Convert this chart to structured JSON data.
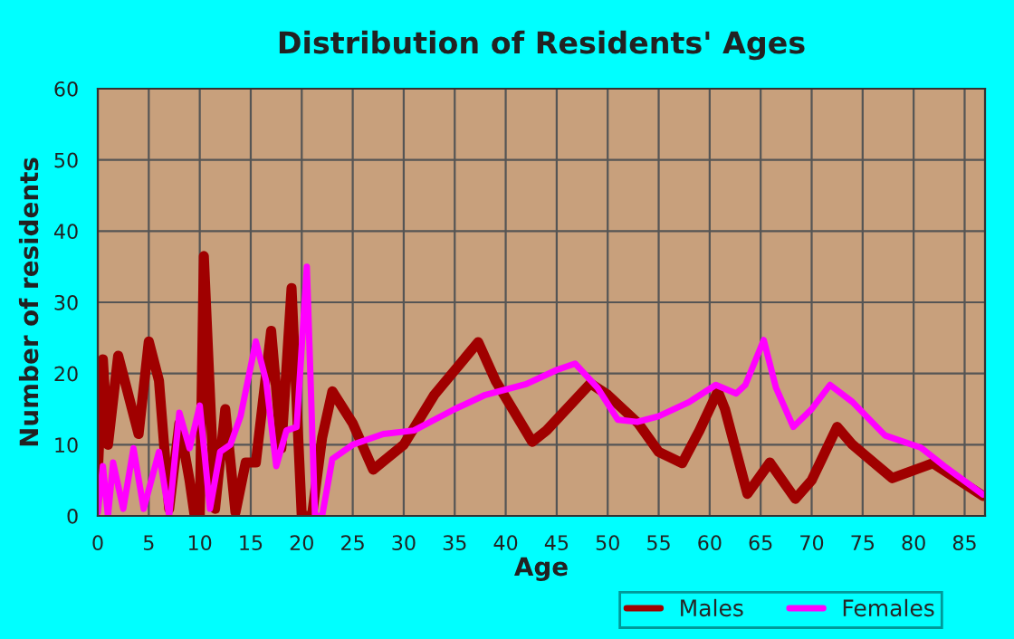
{
  "chart_data": {
    "type": "line",
    "title": "Distribution of Residents' Ages",
    "xlabel": "Age",
    "ylabel": "Number of residents",
    "xlim": [
      0,
      87
    ],
    "xticks": [
      0,
      5,
      10,
      15,
      20,
      25,
      30,
      35,
      40,
      45,
      50,
      55,
      60,
      65,
      70,
      75,
      80,
      85
    ],
    "ylim": [
      0,
      60
    ],
    "yticks": [
      0,
      10,
      20,
      30,
      40,
      50,
      60
    ],
    "grid": true,
    "legend": "bottom right",
    "line_style": "solid",
    "marker": "none",
    "series": [
      {
        "name": "Males",
        "color": "#a00000",
        "x": [
          0,
          0.5,
          1,
          2,
          4,
          5,
          6,
          7,
          8,
          9,
          9.5,
          10,
          10.4,
          11.5,
          12.5,
          13.5,
          14.5,
          15.5,
          17,
          18,
          19,
          20,
          21,
          22,
          23,
          25,
          27,
          30,
          33,
          37.3,
          39,
          42.6,
          44,
          48.3,
          50,
          53,
          55,
          57.3,
          59,
          60.8,
          61.5,
          63.7,
          65.9,
          68.4,
          70,
          72.5,
          74,
          77.9,
          81.9,
          86.8
        ],
        "values": [
          6,
          22,
          10,
          22.5,
          11.5,
          24.5,
          19,
          1,
          13,
          5,
          0,
          0,
          36.5,
          1,
          15,
          0.5,
          7.5,
          7.5,
          26,
          9.5,
          32,
          0,
          0,
          11,
          17.5,
          13,
          6.5,
          10,
          17,
          24.4,
          19,
          10.4,
          12,
          18.6,
          17,
          13,
          9,
          7.4,
          12,
          17.5,
          15,
          3.1,
          7.5,
          2.4,
          5,
          12.5,
          10,
          5.3,
          7.4,
          2.8
        ]
      },
      {
        "name": "Females",
        "color": "#ff00ff",
        "x": [
          0,
          0.5,
          1,
          1.5,
          2.5,
          3.5,
          4.5,
          6,
          7,
          8,
          9,
          10,
          11,
          12,
          13,
          14,
          15.5,
          16.5,
          17.5,
          18.5,
          19.5,
          20.5,
          21.3,
          22,
          23,
          25,
          28,
          31,
          35,
          38,
          42,
          45,
          46.8,
          49,
          51,
          52.9,
          55,
          58,
          60.6,
          62.6,
          63.5,
          65.3,
          66.5,
          68.2,
          70,
          71.8,
          74,
          77.2,
          80.7,
          83,
          86.8
        ],
        "values": [
          0.5,
          7,
          0,
          7.5,
          1,
          9.5,
          1,
          9,
          0,
          14.5,
          9.5,
          15.5,
          1,
          9,
          10,
          14,
          24.5,
          19,
          7,
          12,
          12.5,
          35,
          0,
          0,
          8,
          10,
          11.5,
          12,
          15,
          17,
          18.5,
          20.5,
          21.4,
          18,
          13.5,
          13.2,
          14,
          16,
          18.4,
          17.2,
          18.4,
          24.7,
          18,
          12.5,
          15,
          18.4,
          16,
          11.3,
          9.6,
          7,
          3
        ]
      }
    ]
  }
}
